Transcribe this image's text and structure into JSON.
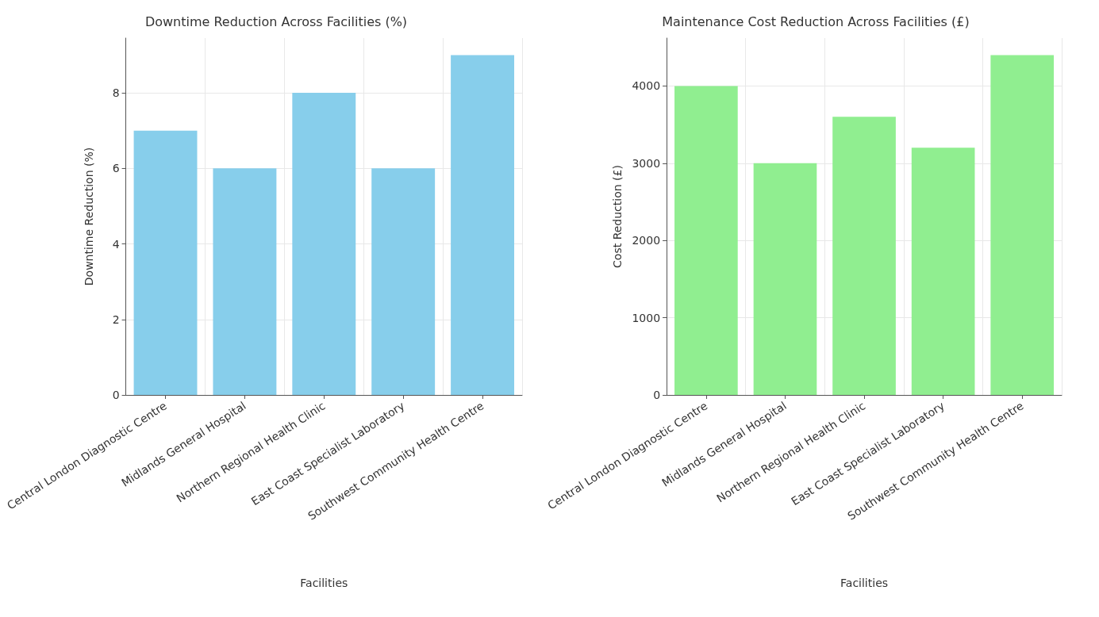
{
  "chart_data": [
    {
      "type": "bar",
      "title": "Downtime Reduction Across Facilities (%)",
      "xlabel": "Facilities",
      "ylabel": "Downtime Reduction (%)",
      "categories": [
        "Central London Diagnostic Centre",
        "Midlands General Hospital",
        "Northern Regional Health Clinic",
        "East Coast Specialist Laboratory",
        "Southwest Community Health Centre"
      ],
      "values": [
        7,
        6,
        8,
        6,
        9
      ],
      "color": "#87ceeb",
      "ylim": [
        0,
        9.45
      ],
      "yticks": [
        0,
        2,
        4,
        6,
        8
      ],
      "grid": true
    },
    {
      "type": "bar",
      "title": "Maintenance Cost Reduction Across Facilities (£)",
      "xlabel": "Facilities",
      "ylabel": "Cost Reduction (£)",
      "categories": [
        "Central London Diagnostic Centre",
        "Midlands General Hospital",
        "Northern Regional Health Clinic",
        "East Coast Specialist Laboratory",
        "Southwest Community Health Centre"
      ],
      "values": [
        4000,
        3000,
        3600,
        3200,
        4400
      ],
      "color": "#90ee90",
      "ylim": [
        0,
        4620
      ],
      "yticks": [
        0,
        1000,
        2000,
        3000,
        4000
      ],
      "grid": true
    }
  ]
}
